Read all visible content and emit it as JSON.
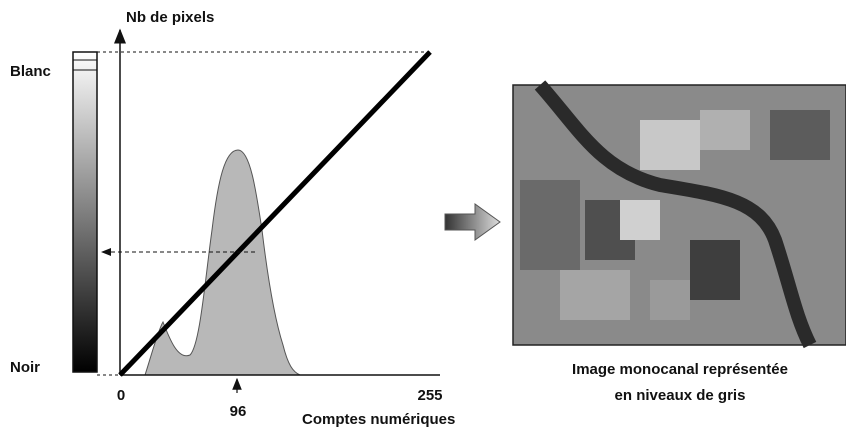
{
  "diagram": {
    "y_axis_label": "Nb de pixels",
    "x_axis_label": "Comptes numériques",
    "scale": {
      "top": "Blanc",
      "bottom": "Noir"
    },
    "x_ticks": [
      "0",
      "96",
      "255"
    ],
    "caption": [
      "Image monocanal représentée",
      "en niveaux de gris"
    ]
  }
}
